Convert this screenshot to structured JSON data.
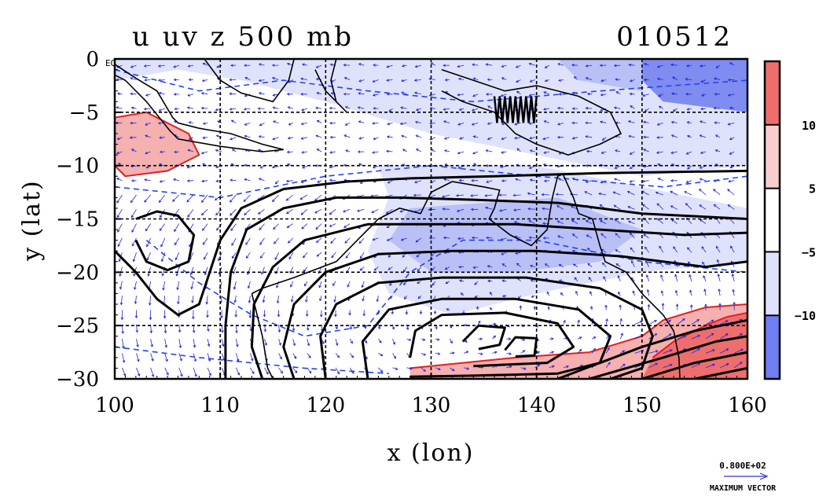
{
  "chart_data": {
    "type": "heatmap",
    "title": "u uv z 500 mb",
    "date_label": "010512",
    "xlabel": "x (lon)",
    "ylabel": "y (lat)",
    "xlim": [
      100,
      160
    ],
    "ylim": [
      -30,
      0
    ],
    "x_ticks": [
      100,
      110,
      120,
      130,
      140,
      150,
      160
    ],
    "y_ticks": [
      0,
      -5,
      -10,
      -15,
      -20,
      -25,
      -30
    ],
    "y_tick_labels": [
      "0",
      "−5",
      "−10",
      "−15",
      "−20",
      "−25",
      "−30"
    ],
    "origin_note": "EQ",
    "grid": true,
    "colorbar": {
      "levels": [
        -10,
        -5,
        5,
        10
      ],
      "level_labels": [
        "−10",
        "−5",
        "5",
        "10"
      ],
      "colors": [
        "#6f7ef0",
        "#dfe2fb",
        "#ffffff",
        "#f7cdcd",
        "#ee6e6e"
      ]
    },
    "shaded_regions": [
      {
        "range": "> 5",
        "color": "#f5b0b0",
        "location": "west coast near 100-108E, 5-10S"
      },
      {
        "range": "> 5",
        "color": "#f5b0b0",
        "location": "south 128-160E, 26-30S"
      },
      {
        "range": "> 10",
        "color": "#ee6e6e",
        "location": "southeast 153-160E, 24-30S"
      },
      {
        "range": "< -5",
        "color": "#dfe2fb",
        "location": "north and central tropics"
      },
      {
        "range": "< -10",
        "color": "#7f8cf0",
        "location": "northeast 150-160E, 0-5S"
      }
    ],
    "vector_legend": {
      "value_label": "0.800E+02",
      "caption": "MAXIMUM VECTOR"
    }
  }
}
